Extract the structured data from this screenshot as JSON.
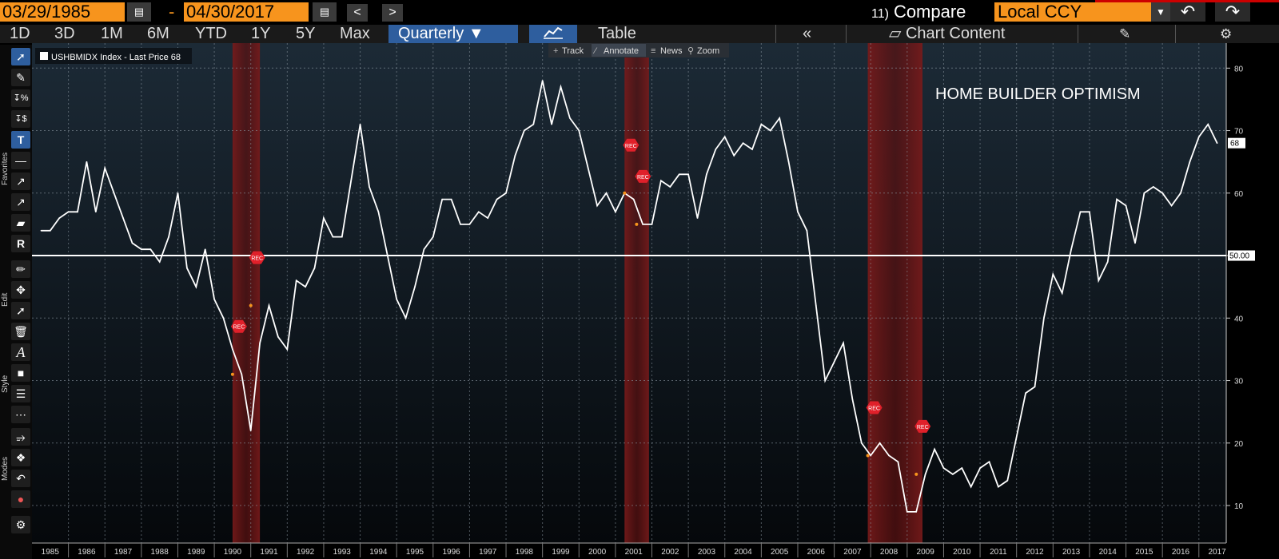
{
  "toolbar_top": {
    "start_date": "03/29/1985",
    "date_separator": "-",
    "end_date": "04/30/2017",
    "calendar_icon": "calendar-icon",
    "prev_icon": "<",
    "next_icon": ">",
    "compare_index": "11)",
    "compare_label": "Compare",
    "currency": "Local CCY",
    "undo_icon": "undo-icon",
    "redo_icon": "redo-icon"
  },
  "toolbar_ranges": {
    "ranges": [
      "1D",
      "3D",
      "1M",
      "6M",
      "YTD",
      "1Y",
      "5Y",
      "Max"
    ],
    "period": "Quarterly",
    "view_table": "Table",
    "collapse": "«",
    "chart_content": "Chart Content"
  },
  "chart_toolbar": {
    "track": "Track",
    "annotate": "Annotate",
    "news": "News",
    "zoom": "Zoom"
  },
  "side_labels": {
    "favorites": "Favorites",
    "edit": "Edit",
    "style": "Style",
    "modes": "Modes"
  },
  "chart_data": {
    "type": "line",
    "legend": "USHBMIDX Index - Last Price 68",
    "annotation": "HOME BUILDER OPTIMISM",
    "ylim": [
      4,
      84
    ],
    "yticks": [
      10,
      20,
      30,
      40,
      50,
      60,
      70,
      80
    ],
    "x_labels": [
      "1985",
      "1986",
      "1987",
      "1988",
      "1989",
      "1990",
      "1991",
      "1992",
      "1993",
      "1994",
      "1995",
      "1996",
      "1997",
      "1998",
      "1999",
      "2000",
      "2001",
      "2002",
      "2003",
      "2004",
      "2005",
      "2006",
      "2007",
      "2008",
      "2009",
      "2010",
      "2011",
      "2012",
      "2013",
      "2014",
      "2015",
      "2016",
      "2017"
    ],
    "reference_line": 50,
    "reference_label": "50.00",
    "last_value_label": "68",
    "recession_label": "REC",
    "recessions": [
      [
        1990.5,
        1991.25
      ],
      [
        2001.25,
        2001.92
      ],
      [
        2007.92,
        2009.42
      ]
    ],
    "rec_markers": [
      {
        "x": 1990.5,
        "y": 31
      },
      {
        "x": 1991.0,
        "y": 42
      },
      {
        "x": 2001.25,
        "y": 60
      },
      {
        "x": 2001.58,
        "y": 55
      },
      {
        "x": 2007.92,
        "y": 18
      },
      {
        "x": 2009.25,
        "y": 15
      }
    ],
    "series": [
      {
        "values": [
          54,
          54,
          56,
          57,
          57,
          65,
          57,
          64,
          60,
          56,
          52,
          51,
          51,
          49,
          53,
          60,
          48,
          45,
          51,
          43,
          40,
          35,
          31,
          22,
          36,
          42,
          37,
          35,
          46,
          45,
          48,
          56,
          53,
          53,
          62,
          71,
          61,
          57,
          50,
          43,
          40,
          45,
          51,
          53,
          59,
          59,
          55,
          55,
          57,
          56,
          59,
          60,
          66,
          70,
          71,
          78,
          71,
          77,
          72,
          70,
          64,
          58,
          60,
          57,
          60,
          59,
          55,
          55,
          62,
          61,
          63,
          63,
          56,
          63,
          67,
          69,
          66,
          68,
          67,
          71,
          70,
          72,
          65,
          57,
          54,
          42,
          30,
          33,
          36,
          27,
          20,
          18,
          20,
          18,
          17,
          9,
          9,
          15,
          19,
          16,
          15,
          16,
          13,
          16,
          17,
          13,
          14,
          21,
          28,
          29,
          40,
          47,
          44,
          51,
          57,
          57,
          46,
          49,
          59,
          58,
          52,
          60,
          61,
          60,
          58,
          60,
          65,
          69,
          71,
          68
        ],
        "x_start": 1985.25,
        "x_step": 0.25
      }
    ]
  }
}
